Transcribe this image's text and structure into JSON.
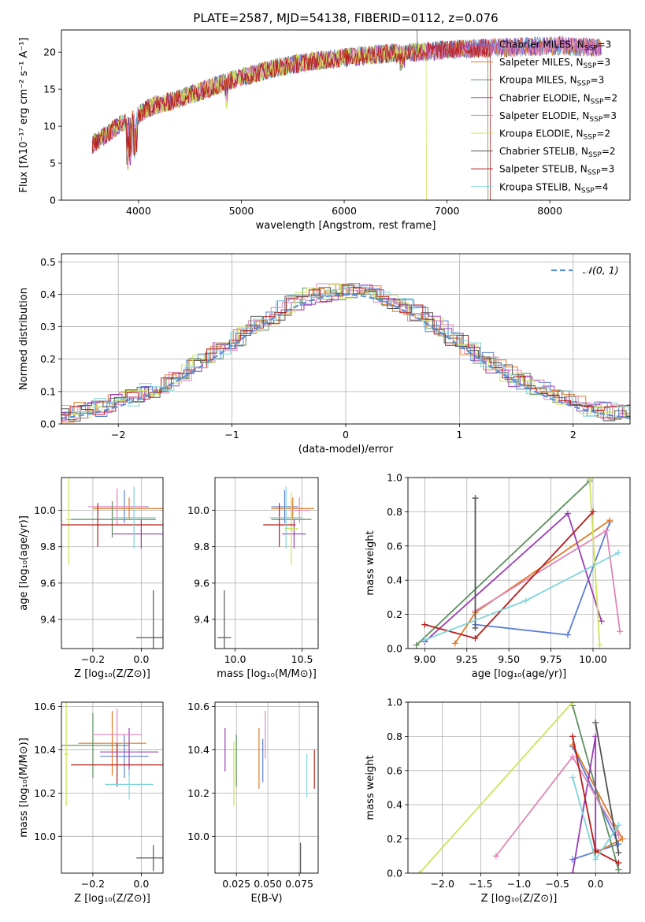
{
  "colors": [
    "#5b7fd6",
    "#e07b2a",
    "#5e8f5e",
    "#9b3db5",
    "#df86b8",
    "#cde45a",
    "#555555",
    "#b81c1c",
    "#7fd4dc"
  ],
  "gauss_color": "#5b8fd6",
  "chart_data": [
    {
      "id": "spectrum",
      "type": "line",
      "title": "PLATE=2587, MJD=54138, FIBERID=0112, z=0.076",
      "xlabel": "wavelength [Angstrom, rest frame]",
      "ylabel": "Flux [fλ10⁻¹⁷ erg cm⁻² s⁻¹ A⁻¹]",
      "xlim": [
        3250,
        8780
      ],
      "ylim": [
        0,
        23
      ],
      "xticks": [
        4000,
        5000,
        6000,
        7000,
        8000
      ],
      "yticks": [
        0,
        5,
        10,
        15,
        20
      ],
      "grid": false,
      "legend_position": "right",
      "legend": [
        {
          "name": "Chabrier MILES, N",
          "sub": "SSP",
          "suffix": "=3"
        },
        {
          "name": "Salpeter MILES, N",
          "sub": "SSP",
          "suffix": "=3"
        },
        {
          "name": "Kroupa MILES, N",
          "sub": "SSP",
          "suffix": "=3"
        },
        {
          "name": "Chabrier ELODIE, N",
          "sub": "SSP",
          "suffix": "=2"
        },
        {
          "name": "Salpeter ELODIE, N",
          "sub": "SSP",
          "suffix": "=3"
        },
        {
          "name": "Kroupa ELODIE, N",
          "sub": "SSP",
          "suffix": "=2"
        },
        {
          "name": "Chabrier STELIB, N",
          "sub": "SSP",
          "suffix": "=2"
        },
        {
          "name": "Salpeter STELIB, N",
          "sub": "SSP",
          "suffix": "=3"
        },
        {
          "name": "Kroupa STELIB, N",
          "sub": "SSP",
          "suffix": "=4"
        }
      ],
      "continuum": {
        "x": [
          3550,
          3650,
          3750,
          3850,
          3950,
          4050,
          4150,
          4300,
          4500,
          4700,
          4900,
          5100,
          5300,
          5500,
          5700,
          5900,
          6100,
          6300,
          6500,
          6700,
          6900,
          7100,
          7300,
          7500,
          7700,
          7900,
          8100,
          8300,
          8500
        ],
        "y": [
          7.5,
          8.5,
          9.5,
          10.5,
          11.0,
          12.0,
          12.8,
          13.3,
          14.2,
          15.2,
          16.2,
          17.0,
          17.8,
          18.3,
          18.8,
          19.1,
          19.4,
          19.7,
          19.9,
          20.0,
          20.2,
          20.4,
          20.5,
          20.6,
          20.7,
          20.8,
          20.9,
          20.7,
          20.6
        ]
      },
      "series_ranges": [
        {
          "x": [
            3650,
            8500
          ]
        },
        {
          "x": [
            3550,
            8500
          ]
        },
        {
          "x": [
            3550,
            7400
          ]
        },
        {
          "x": [
            3550,
            8500
          ]
        },
        {
          "x": [
            3550,
            8500
          ]
        },
        {
          "x": [
            3550,
            6800
          ]
        },
        {
          "x": [
            3550,
            8500
          ]
        },
        {
          "x": [
            3550,
            7420
          ]
        },
        {
          "x": [
            3550,
            8500
          ]
        }
      ]
    },
    {
      "id": "residuals",
      "type": "histogram",
      "xlabel": "(data-model)/error",
      "ylabel": "Normed distribution",
      "xlim": [
        -2.5,
        2.5
      ],
      "ylim": [
        0,
        0.525
      ],
      "xticks": [
        -2,
        -1,
        0,
        1,
        2
      ],
      "xtick_labels": [
        "−2",
        "−1",
        "0",
        "1",
        "2"
      ],
      "yticks": [
        0,
        0.1,
        0.2,
        0.3,
        0.4,
        0.5
      ],
      "ytick_labels": [
        "0.0",
        "0.1",
        "0.2",
        "0.3",
        "0.4",
        "0.5"
      ],
      "grid": true,
      "bin_width": 0.1,
      "legend": "𝒩(0, 1)",
      "legend_position": "top-right"
    },
    {
      "id": "age_vs_Z",
      "type": "scatter-errorbar",
      "xlabel": "Z [log₁₀(Z/Z⊙)]",
      "ylabel": "age  [log₁₀(age/yr)]",
      "xlim": [
        -0.33,
        0.09
      ],
      "ylim": [
        9.24,
        10.18
      ],
      "xticks": [
        -0.2,
        0.0
      ],
      "xtick_labels": [
        "−0.2",
        "0.0"
      ],
      "yticks": [
        9.4,
        9.6,
        9.8,
        10.0
      ],
      "ytick_labels": [
        "9.4",
        "9.6",
        "9.8",
        "10.0"
      ],
      "grid": true,
      "points": [
        {
          "x": -0.07,
          "y": 10.02,
          "xerr": 0.1,
          "yerr": 0.09
        },
        {
          "x": -0.05,
          "y": 10.01,
          "xerr": 0.15,
          "yerr": 0.06
        },
        {
          "x": -0.12,
          "y": 9.95,
          "xerr": 0.18,
          "yerr": 0.1
        },
        {
          "x": 0.0,
          "y": 9.87,
          "xerr": 0.12,
          "yerr": 0.08
        },
        {
          "x": -0.1,
          "y": 10.02,
          "xerr": 0.12,
          "yerr": 0.1
        },
        {
          "x": -0.3,
          "y": 9.95,
          "xerr": 0.01,
          "yerr": 0.25
        },
        {
          "x": 0.05,
          "y": 9.3,
          "xerr": 0.07,
          "yerr": 0.26
        },
        {
          "x": -0.18,
          "y": 9.92,
          "xerr": 0.29,
          "yerr": 0.12
        },
        {
          "x": -0.03,
          "y": 9.96,
          "xerr": 0.09,
          "yerr": 0.17
        }
      ]
    },
    {
      "id": "age_vs_mass",
      "type": "scatter-errorbar",
      "xlabel": "mass [log₁₀(M/M⊙)]",
      "xlim": [
        9.85,
        10.62
      ],
      "ylim": [
        9.24,
        10.18
      ],
      "xticks": [
        10.0,
        10.5
      ],
      "xtick_labels": [
        "10.0",
        "10.5"
      ],
      "yticks": [
        9.4,
        9.6,
        9.8,
        10.0
      ],
      "ytick_labels": [
        "9.4",
        "9.6",
        "9.8",
        "10.0"
      ],
      "grid": true,
      "points": [
        {
          "x": 10.37,
          "y": 10.02,
          "xerr": 0.1,
          "yerr": 0.09
        },
        {
          "x": 10.43,
          "y": 10.01,
          "xerr": 0.16,
          "yerr": 0.06
        },
        {
          "x": 10.42,
          "y": 9.95,
          "xerr": 0.15,
          "yerr": 0.1
        },
        {
          "x": 10.44,
          "y": 9.87,
          "xerr": 0.09,
          "yerr": 0.08
        },
        {
          "x": 10.48,
          "y": 10.0,
          "xerr": 0.08,
          "yerr": 0.07
        },
        {
          "x": 10.42,
          "y": 9.9,
          "xerr": 0.05,
          "yerr": 0.2
        },
        {
          "x": 9.92,
          "y": 9.3,
          "xerr": 0.05,
          "yerr": 0.26
        },
        {
          "x": 10.33,
          "y": 9.92,
          "xerr": 0.12,
          "yerr": 0.12
        },
        {
          "x": 10.38,
          "y": 9.96,
          "xerr": 0.12,
          "yerr": 0.17
        }
      ]
    },
    {
      "id": "weight_vs_age",
      "type": "line",
      "xlabel": "age  [log₁₀(age/yr)]",
      "ylabel": "mass weight",
      "xlim": [
        8.9,
        10.22
      ],
      "ylim": [
        0,
        1.0
      ],
      "xticks": [
        9.0,
        9.25,
        9.5,
        9.75,
        10.0
      ],
      "xtick_labels": [
        "9.00",
        "9.25",
        "9.50",
        "9.75",
        "10.00"
      ],
      "yticks": [
        0,
        0.2,
        0.4,
        0.6,
        0.8,
        1.0
      ],
      "ytick_labels": [
        "0.0",
        "0.2",
        "0.4",
        "0.6",
        "0.8",
        "1.0"
      ],
      "grid": true,
      "series": [
        {
          "x": [
            9.3,
            9.85,
            10.1
          ],
          "y": [
            0.14,
            0.08,
            0.74
          ]
        },
        {
          "x": [
            9.18,
            9.3,
            10.1
          ],
          "y": [
            0.03,
            0.21,
            0.75
          ]
        },
        {
          "x": [
            8.95,
            9.98
          ],
          "y": [
            0.02,
            0.98
          ]
        },
        {
          "x": [
            9.0,
            9.85,
            10.05
          ],
          "y": [
            0.04,
            0.79,
            0.16
          ]
        },
        {
          "x": [
            9.3,
            10.08,
            10.16
          ],
          "y": [
            0.22,
            0.69,
            0.1
          ]
        },
        {
          "x": [
            9.98,
            10.04
          ],
          "y": [
            0.99,
            0.02
          ]
        },
        {
          "x": [
            9.3,
            9.3
          ],
          "y": [
            0.12,
            0.88
          ]
        },
        {
          "x": [
            9.0,
            9.3,
            10.0
          ],
          "y": [
            0.14,
            0.06,
            0.8
          ]
        },
        {
          "x": [
            9.0,
            9.6,
            10.15
          ],
          "y": [
            0.05,
            0.28,
            0.56
          ]
        }
      ]
    },
    {
      "id": "mass_vs_Z",
      "type": "scatter-errorbar",
      "xlabel": "Z [log₁₀(Z/Z⊙)]",
      "ylabel": "mass [log₁₀(M/M⊙)]",
      "xlim": [
        -0.33,
        0.09
      ],
      "ylim": [
        9.83,
        10.62
      ],
      "xticks": [
        -0.2,
        0.0
      ],
      "xtick_labels": [
        "−0.2",
        "0.0"
      ],
      "yticks": [
        10.0,
        10.2,
        10.4,
        10.6
      ],
      "ytick_labels": [
        "10.0",
        "10.2",
        "10.4",
        "10.6"
      ],
      "grid": true,
      "points": [
        {
          "x": -0.07,
          "y": 10.37,
          "xerr": 0.1,
          "yerr": 0.1
        },
        {
          "x": -0.12,
          "y": 10.43,
          "xerr": 0.14,
          "yerr": 0.15
        },
        {
          "x": -0.2,
          "y": 10.42,
          "xerr": 0.15,
          "yerr": 0.15
        },
        {
          "x": -0.05,
          "y": 10.39,
          "xerr": 0.12,
          "yerr": 0.11
        },
        {
          "x": -0.1,
          "y": 10.47,
          "xerr": 0.1,
          "yerr": 0.12
        },
        {
          "x": -0.31,
          "y": 10.38,
          "xerr": 0.01,
          "yerr": 0.24
        },
        {
          "x": 0.05,
          "y": 9.9,
          "xerr": 0.07,
          "yerr": 0.06
        },
        {
          "x": -0.1,
          "y": 10.33,
          "xerr": 0.19,
          "yerr": 0.1
        },
        {
          "x": -0.05,
          "y": 10.24,
          "xerr": 0.1,
          "yerr": 0.07
        }
      ]
    },
    {
      "id": "mass_vs_EBV",
      "type": "errorbar",
      "xlabel": "E(B-V)",
      "xlim": [
        0.008,
        0.09
      ],
      "ylim": [
        9.83,
        10.62
      ],
      "xticks": [
        0.025,
        0.05,
        0.075
      ],
      "xtick_labels": [
        "0.025",
        "0.050",
        "0.075"
      ],
      "yticks": [
        10.0,
        10.2,
        10.4,
        10.6
      ],
      "ytick_labels": [
        "10.0",
        "10.2",
        "10.4",
        "10.6"
      ],
      "grid": true,
      "points": [
        {
          "x": 0.046,
          "y": 10.35,
          "yerr": 0.1
        },
        {
          "x": 0.043,
          "y": 10.36,
          "yerr": 0.14
        },
        {
          "x": 0.025,
          "y": 10.35,
          "yerr": 0.12
        },
        {
          "x": 0.016,
          "y": 10.4,
          "yerr": 0.1
        },
        {
          "x": 0.048,
          "y": 10.47,
          "yerr": 0.11
        },
        {
          "x": 0.023,
          "y": 10.29,
          "yerr": 0.15
        },
        {
          "x": 0.076,
          "y": 9.9,
          "yerr": 0.07
        },
        {
          "x": 0.087,
          "y": 10.31,
          "yerr": 0.09
        },
        {
          "x": 0.081,
          "y": 10.28,
          "yerr": 0.1
        }
      ]
    },
    {
      "id": "weight_vs_Z",
      "type": "line",
      "xlabel": "Z [log₁₀(Z/Z⊙)]",
      "ylabel": "mass weight",
      "xlim": [
        -2.45,
        0.45
      ],
      "ylim": [
        0,
        1.0
      ],
      "xticks": [
        -2.0,
        -1.5,
        -1.0,
        -0.5,
        0.0
      ],
      "xtick_labels": [
        "−2.0",
        "−1.5",
        "−1.0",
        "−0.5",
        "0.0"
      ],
      "yticks": [
        0,
        0.2,
        0.4,
        0.6,
        0.8,
        1.0
      ],
      "ytick_labels": [
        "0.0",
        "0.2",
        "0.4",
        "0.6",
        "0.8",
        "1.0"
      ],
      "grid": true,
      "series": [
        {
          "x": [
            -0.3,
            0.3,
            -0.3
          ],
          "y": [
            0.08,
            0.17,
            0.74
          ]
        },
        {
          "x": [
            -0.3,
            0.35,
            0.0
          ],
          "y": [
            0.75,
            0.2,
            0.12
          ]
        },
        {
          "x": [
            -0.3,
            0.3
          ],
          "y": [
            0.98,
            0.02
          ]
        },
        {
          "x": [
            -0.3,
            0.0,
            0.0
          ],
          "y": [
            0.0,
            0.8,
            0.14
          ]
        },
        {
          "x": [
            -1.3,
            -0.3,
            0.3
          ],
          "y": [
            0.1,
            0.68,
            0.22
          ]
        },
        {
          "x": [
            -2.3,
            -0.3
          ],
          "y": [
            0.0,
            1.0
          ]
        },
        {
          "x": [
            0.0,
            0.3
          ],
          "y": [
            0.88,
            0.12
          ]
        },
        {
          "x": [
            -0.3,
            0.0,
            0.3
          ],
          "y": [
            0.8,
            0.13,
            0.06
          ]
        },
        {
          "x": [
            -0.3,
            0.0,
            0.3
          ],
          "y": [
            0.56,
            0.08,
            0.28
          ]
        }
      ]
    }
  ]
}
